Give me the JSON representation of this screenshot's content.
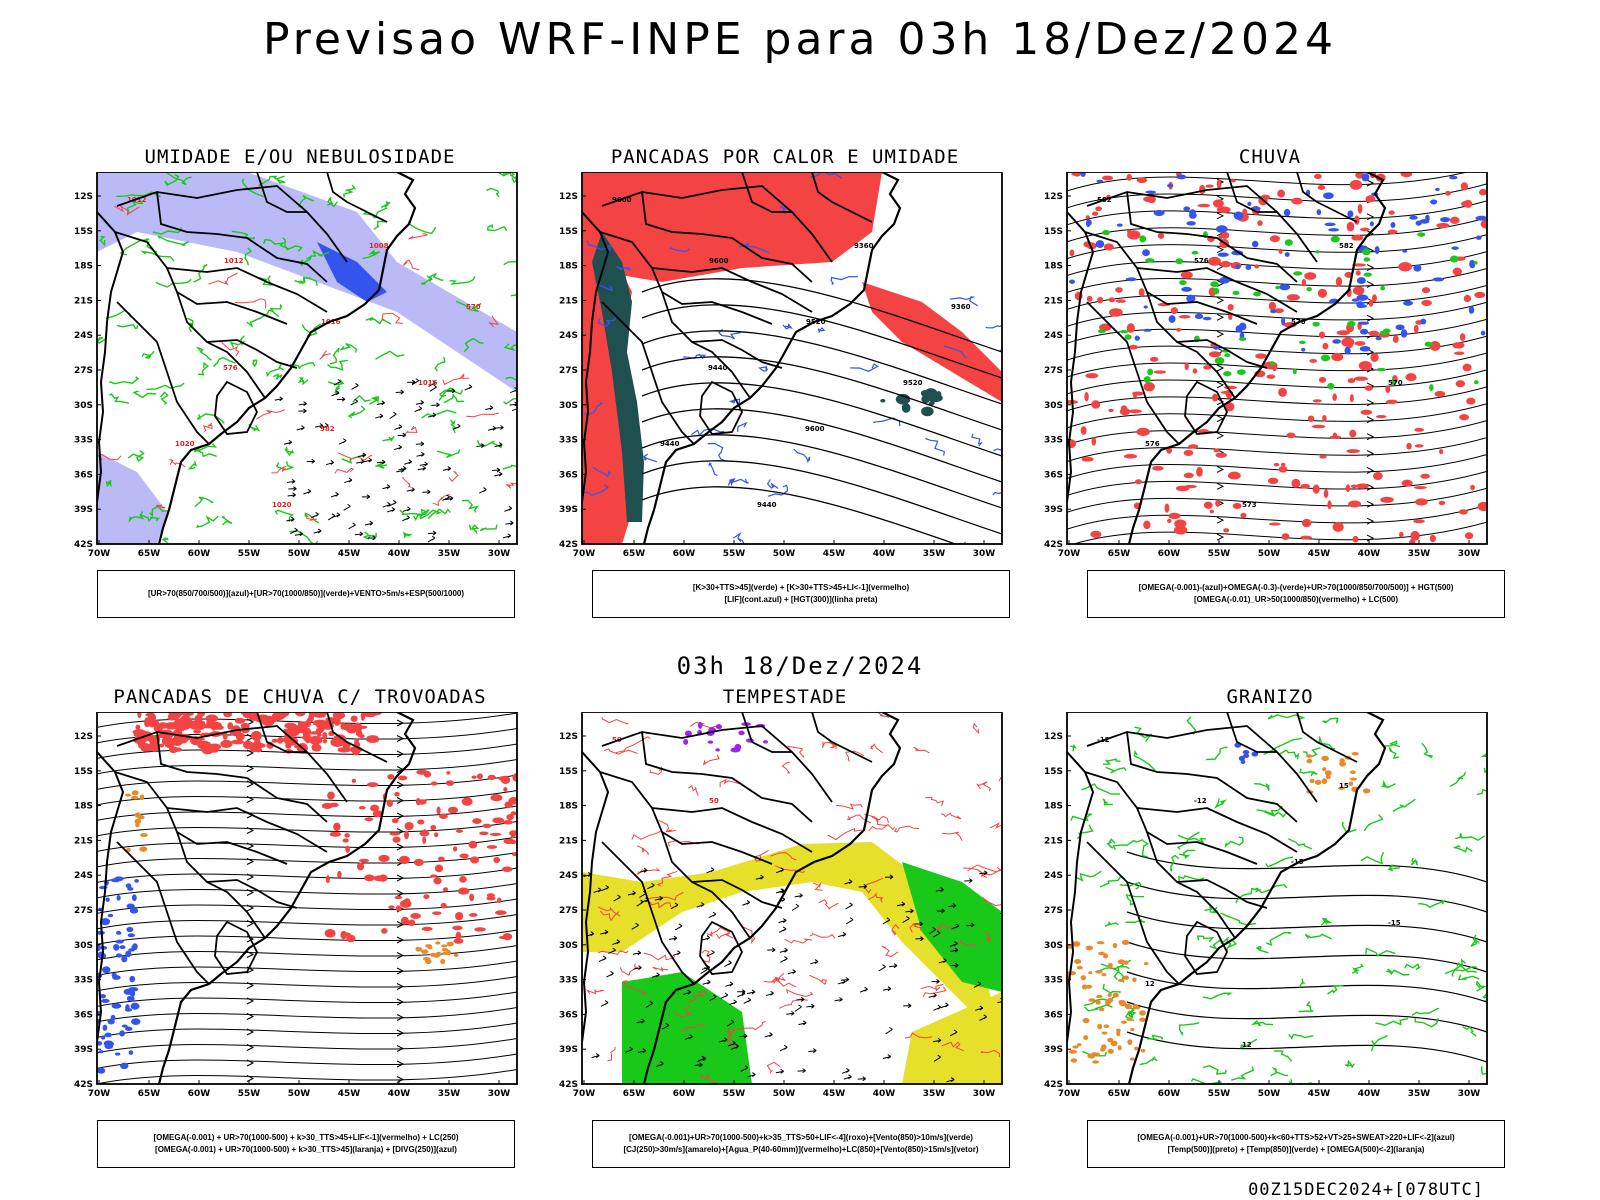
{
  "main_title": "Previsao WRF-INPE  para 03h 18/Dez/2024",
  "subtitle": "03h 18/Dez/2024",
  "footer": "00Z15DEC2024+[078UTC]",
  "lat_labels": [
    "12S",
    "15S",
    "18S",
    "21S",
    "24S",
    "27S",
    "30S",
    "33S",
    "36S",
    "39S",
    "42S"
  ],
  "lon_labels": [
    "70W",
    "65W",
    "60W",
    "55W",
    "50W",
    "45W",
    "40W",
    "35W",
    "30W"
  ],
  "panels": [
    {
      "title": "UMIDADE E/OU NEBULOSIDADE",
      "legend": [
        "[UR>70(850/700/500)](azul)+[UR>70(1000/850)](verde)+VENTO>5m/s+ESP(500/1000)"
      ],
      "contour_labels": [
        "1012",
        "1012",
        "1016",
        "1016",
        "1020",
        "1020",
        "1008",
        "570",
        "576",
        "582"
      ]
    },
    {
      "title": "PANCADAS POR CALOR E UMIDADE",
      "legend": [
        "[K>30+TTS>45](verde)  +  [K>30+TTS>45+LI<-1](vermelho)",
        "[LIF](cont.azul)  +  [HGT(300)](linha preta)"
      ],
      "contour_labels": [
        "9600",
        "9600",
        "9520",
        "9520",
        "9440",
        "9440",
        "9360",
        "9360",
        "9440",
        "9600"
      ]
    },
    {
      "title": "CHUVA",
      "legend": [
        "[OMEGA(-0.001)-(azul)+OMEGA(-0.3)-(verde)+UR>70(1000/850/700/500)]  +  HGT(500)",
        "[OMEGA(-0.01)_UR>50(1000/850)(vermelho)  +  LC(500)"
      ],
      "contour_labels": [
        "582",
        "576",
        "576",
        "570",
        "576",
        "573",
        "582"
      ]
    },
    {
      "title": "PANCADAS DE CHUVA C/ TROVOADAS",
      "legend": [
        "[OMEGA(-0.001)  +  UR>70(1000-500)  +  k>30_TTS>45+LIF<-1](vermelho)  +  LC(250)",
        "[OMEGA(-0.001)  +  UR>70(1000-500)  +  k>30_TTS>45](laranja)  +  [DIVG(250)](azul)"
      ],
      "contour_labels": []
    },
    {
      "title": "TEMPESTADE",
      "legend": [
        "[OMEGA(-0.001)+UR>70(1000-500)+k>35_TTS>50+LIF<-4](roxo)+[Vento(850)>10m/s](verde)",
        "[CJ(250)>30m/s](amarelo)+[Agua_P(40-60mm)](vermelho)+LC(850)+[Vento(850)>15m/s](vetor)"
      ],
      "contour_labels": [
        "50",
        "50"
      ]
    },
    {
      "title": "GRANIZO",
      "legend": [
        "[OMEGA(-0.001)+UR>70(1000-500)+k<60+TTS>52+VT>25+SWEAT>220+LIF<-2](azul)",
        "[Temp(500)](preto)  +  [Temp(850)](verde)  +  [OMEGA(500)<-2](laranja)"
      ],
      "contour_labels": [
        "-12",
        "-12",
        "-15",
        "-15",
        "12",
        "12",
        "15"
      ]
    }
  ],
  "colors": {
    "red": "#f44343",
    "green": "#19c919",
    "blue": "#3355ee",
    "lavender": "#a9a9f5",
    "yellow": "#e6e02b",
    "dkgreen": "#1f4f4f",
    "orange": "#e88a2a",
    "purple": "#a020f0"
  }
}
